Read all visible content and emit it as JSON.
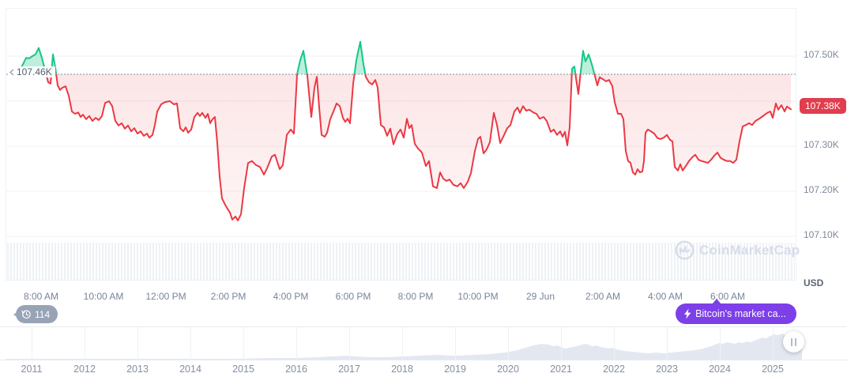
{
  "colors": {
    "green": "#16c784",
    "green_fill": "rgba(22,199,132,0.28)",
    "red": "#ea3943",
    "red_fill_top": "rgba(234,57,67,0.13)",
    "red_fill_bottom": "rgba(234,57,67,0.02)",
    "badge_red": "#e03e4e",
    "purple": "#7d3fe8",
    "gray_badge": "#99a3b6",
    "grid": "#eff2f5",
    "axis_text": "#7f889b",
    "watermark": "#d7dcea",
    "mini_fill": "#e3e8f0"
  },
  "y_axis": {
    "unit_label": "USD",
    "labels": [
      {
        "label": "107.50K",
        "value": 107.5
      },
      {
        "label": "107.30K",
        "value": 107.3
      },
      {
        "label": "107.20K",
        "value": 107.2
      },
      {
        "label": "107.10K",
        "value": 107.1
      }
    ],
    "current_price_label": "107.38K"
  },
  "baseline": {
    "label": "107.46K",
    "value": 107.46
  },
  "history_badge": {
    "count": "114"
  },
  "marketcap_tooltip": {
    "label": "Bitcoin's market ca..."
  },
  "watermark": {
    "label": "CoinMarketCap"
  },
  "chart_data": [
    {
      "type": "line",
      "title": "Bitcoin price intraday (28-29 Jun), USD",
      "unit": "USD",
      "grid": true,
      "legend": "none",
      "baseline_price": 107.46,
      "current_price": 107.38,
      "ylim": [
        107.06,
        107.6
      ],
      "y_grid_values": [
        107.5,
        107.4,
        107.3,
        107.2,
        107.1
      ],
      "x_tick_labels": [
        "8:00 AM",
        "10:00 AM",
        "12:00 PM",
        "2:00 PM",
        "4:00 PM",
        "6:00 PM",
        "8:00 PM",
        "10:00 PM",
        "29 Jun",
        "2:00 AM",
        "4:00 AM",
        "6:00 AM"
      ],
      "points": [
        [
          25,
          107.472
        ],
        [
          28,
          107.482
        ],
        [
          32,
          107.496
        ],
        [
          36,
          107.495
        ],
        [
          40,
          107.5
        ],
        [
          44,
          107.504
        ],
        [
          48,
          107.518
        ],
        [
          52,
          107.496
        ],
        [
          56,
          107.47
        ],
        [
          60,
          107.442
        ],
        [
          63,
          107.439
        ],
        [
          66,
          107.504
        ],
        [
          69,
          107.474
        ],
        [
          72,
          107.435
        ],
        [
          75,
          107.425
        ],
        [
          78,
          107.43
        ],
        [
          82,
          107.433
        ],
        [
          86,
          107.412
        ],
        [
          90,
          107.377
        ],
        [
          94,
          107.372
        ],
        [
          98,
          107.375
        ],
        [
          101,
          107.365
        ],
        [
          104,
          107.37
        ],
        [
          108,
          107.36
        ],
        [
          112,
          107.367
        ],
        [
          116,
          107.356
        ],
        [
          120,
          107.363
        ],
        [
          124,
          107.358
        ],
        [
          128,
          107.367
        ],
        [
          132,
          107.396
        ],
        [
          137,
          107.4
        ],
        [
          141,
          107.389
        ],
        [
          145,
          107.356
        ],
        [
          149,
          107.346
        ],
        [
          153,
          107.351
        ],
        [
          157,
          107.339
        ],
        [
          161,
          107.346
        ],
        [
          165,
          107.333
        ],
        [
          169,
          107.34
        ],
        [
          173,
          107.328
        ],
        [
          177,
          107.333
        ],
        [
          181,
          107.323
        ],
        [
          185,
          107.328
        ],
        [
          188,
          107.319
        ],
        [
          192,
          107.325
        ],
        [
          195,
          107.347
        ],
        [
          198,
          107.377
        ],
        [
          203,
          107.393
        ],
        [
          208,
          107.398
        ],
        [
          214,
          107.4
        ],
        [
          219,
          107.393
        ],
        [
          223,
          107.395
        ],
        [
          227,
          107.34
        ],
        [
          231,
          107.333
        ],
        [
          234,
          107.342
        ],
        [
          237,
          107.33
        ],
        [
          241,
          107.337
        ],
        [
          245,
          107.365
        ],
        [
          249,
          107.374
        ],
        [
          252,
          107.367
        ],
        [
          255,
          107.374
        ],
        [
          259,
          107.363
        ],
        [
          262,
          107.372
        ],
        [
          265,
          107.351
        ],
        [
          268,
          107.36
        ],
        [
          271,
          107.365
        ],
        [
          274,
          107.307
        ],
        [
          277,
          107.232
        ],
        [
          280,
          107.184
        ],
        [
          284,
          107.17
        ],
        [
          287,
          107.161
        ],
        [
          290,
          107.153
        ],
        [
          293,
          107.137
        ],
        [
          297,
          107.144
        ],
        [
          300,
          107.135
        ],
        [
          304,
          107.149
        ],
        [
          308,
          107.207
        ],
        [
          313,
          107.263
        ],
        [
          318,
          107.267
        ],
        [
          323,
          107.258
        ],
        [
          328,
          107.254
        ],
        [
          333,
          107.237
        ],
        [
          337,
          107.251
        ],
        [
          343,
          107.277
        ],
        [
          347,
          107.281
        ],
        [
          353,
          107.249
        ],
        [
          357,
          107.258
        ],
        [
          362,
          107.325
        ],
        [
          367,
          107.337
        ],
        [
          371,
          107.328
        ],
        [
          375,
          107.46
        ],
        [
          379,
          107.491
        ],
        [
          383,
          107.512
        ],
        [
          388,
          107.456
        ],
        [
          393,
          107.365
        ],
        [
          397,
          107.43
        ],
        [
          400,
          107.454
        ],
        [
          403,
          107.386
        ],
        [
          406,
          107.325
        ],
        [
          410,
          107.321
        ],
        [
          413,
          107.33
        ],
        [
          417,
          107.36
        ],
        [
          421,
          107.377
        ],
        [
          425,
          107.395
        ],
        [
          429,
          107.389
        ],
        [
          433,
          107.363
        ],
        [
          436,
          107.354
        ],
        [
          439,
          107.361
        ],
        [
          442,
          107.351
        ],
        [
          446,
          107.439
        ],
        [
          450,
          107.491
        ],
        [
          455,
          107.532
        ],
        [
          459,
          107.482
        ],
        [
          462,
          107.454
        ],
        [
          466,
          107.442
        ],
        [
          470,
          107.437
        ],
        [
          474,
          107.447
        ],
        [
          477,
          107.43
        ],
        [
          481,
          107.347
        ],
        [
          485,
          107.342
        ],
        [
          489,
          107.323
        ],
        [
          493,
          107.339
        ],
        [
          497,
          107.304
        ],
        [
          502,
          107.328
        ],
        [
          506,
          107.337
        ],
        [
          510,
          107.319
        ],
        [
          514,
          107.361
        ],
        [
          517,
          107.34
        ],
        [
          520,
          107.347
        ],
        [
          524,
          107.305
        ],
        [
          528,
          107.295
        ],
        [
          533,
          107.286
        ],
        [
          538,
          107.256
        ],
        [
          542,
          107.267
        ],
        [
          547,
          107.211
        ],
        [
          552,
          107.207
        ],
        [
          556,
          107.242
        ],
        [
          560,
          107.228
        ],
        [
          564,
          107.223
        ],
        [
          568,
          107.226
        ],
        [
          573,
          107.214
        ],
        [
          578,
          107.211
        ],
        [
          582,
          107.218
        ],
        [
          586,
          107.207
        ],
        [
          591,
          107.221
        ],
        [
          595,
          107.24
        ],
        [
          600,
          107.289
        ],
        [
          604,
          107.316
        ],
        [
          607,
          107.321
        ],
        [
          611,
          107.284
        ],
        [
          615,
          107.293
        ],
        [
          619,
          107.309
        ],
        [
          624,
          107.374
        ],
        [
          628,
          107.347
        ],
        [
          632,
          107.307
        ],
        [
          637,
          107.325
        ],
        [
          641,
          107.34
        ],
        [
          645,
          107.347
        ],
        [
          650,
          107.377
        ],
        [
          654,
          107.386
        ],
        [
          657,
          107.374
        ],
        [
          661,
          107.389
        ],
        [
          665,
          107.379
        ],
        [
          669,
          107.381
        ],
        [
          674,
          107.375
        ],
        [
          678,
          107.372
        ],
        [
          682,
          107.361
        ],
        [
          687,
          107.365
        ],
        [
          691,
          107.356
        ],
        [
          696,
          107.332
        ],
        [
          700,
          107.337
        ],
        [
          704,
          107.325
        ],
        [
          708,
          107.333
        ],
        [
          711,
          107.321
        ],
        [
          714,
          107.332
        ],
        [
          717,
          107.302
        ],
        [
          720,
          107.342
        ],
        [
          723,
          107.472
        ],
        [
          726,
          107.477
        ],
        [
          728,
          107.451
        ],
        [
          731,
          107.416
        ],
        [
          734,
          107.465
        ],
        [
          737,
          107.512
        ],
        [
          740,
          107.488
        ],
        [
          744,
          107.504
        ],
        [
          748,
          107.482
        ],
        [
          752,
          107.456
        ],
        [
          755,
          107.435
        ],
        [
          758,
          107.453
        ],
        [
          762,
          107.449
        ],
        [
          766,
          107.444
        ],
        [
          770,
          107.447
        ],
        [
          774,
          107.433
        ],
        [
          777,
          107.398
        ],
        [
          781,
          107.372
        ],
        [
          785,
          107.372
        ],
        [
          788,
          107.36
        ],
        [
          791,
          107.289
        ],
        [
          794,
          107.267
        ],
        [
          797,
          107.263
        ],
        [
          800,
          107.242
        ],
        [
          803,
          107.237
        ],
        [
          806,
          107.249
        ],
        [
          809,
          107.242
        ],
        [
          812,
          107.244
        ],
        [
          814,
          107.267
        ],
        [
          816,
          107.33
        ],
        [
          819,
          107.337
        ],
        [
          823,
          107.333
        ],
        [
          827,
          107.328
        ],
        [
          831,
          107.318
        ],
        [
          835,
          107.316
        ],
        [
          839,
          107.319
        ],
        [
          843,
          107.325
        ],
        [
          847,
          107.314
        ],
        [
          850,
          107.311
        ],
        [
          853,
          107.254
        ],
        [
          857,
          107.246
        ],
        [
          860,
          107.26
        ],
        [
          863,
          107.246
        ],
        [
          867,
          107.256
        ],
        [
          871,
          107.267
        ],
        [
          875,
          107.275
        ],
        [
          879,
          107.281
        ],
        [
          883,
          107.27
        ],
        [
          887,
          107.267
        ],
        [
          891,
          107.265
        ],
        [
          895,
          107.263
        ],
        [
          899,
          107.27
        ],
        [
          903,
          107.279
        ],
        [
          907,
          107.286
        ],
        [
          911,
          107.274
        ],
        [
          915,
          107.27
        ],
        [
          919,
          107.267
        ],
        [
          923,
          107.267
        ],
        [
          927,
          107.263
        ],
        [
          931,
          107.27
        ],
        [
          935,
          107.311
        ],
        [
          939,
          107.344
        ],
        [
          943,
          107.347
        ],
        [
          947,
          107.351
        ],
        [
          951,
          107.347
        ],
        [
          955,
          107.356
        ],
        [
          959,
          107.36
        ],
        [
          963,
          107.365
        ],
        [
          967,
          107.37
        ],
        [
          971,
          107.375
        ],
        [
          974,
          107.377
        ],
        [
          977,
          107.363
        ],
        [
          981,
          107.395
        ],
        [
          984,
          107.381
        ],
        [
          988,
          107.391
        ],
        [
          992,
          107.377
        ],
        [
          995,
          107.388
        ],
        [
          1000,
          107.382
        ]
      ]
    },
    {
      "type": "area",
      "title": "All-time range selector",
      "x_tick_labels": [
        "2011",
        "2012",
        "2013",
        "2014",
        "2015",
        "2016",
        "2017",
        "2018",
        "2019",
        "2020",
        "2021",
        "2022",
        "2023",
        "2024",
        "2025"
      ],
      "points": [
        [
          7,
          1
        ],
        [
          60,
          1
        ],
        [
          120,
          1
        ],
        [
          180,
          1
        ],
        [
          240,
          1
        ],
        [
          300,
          1
        ],
        [
          340,
          2
        ],
        [
          375,
          2
        ],
        [
          400,
          3
        ],
        [
          420,
          4
        ],
        [
          440,
          5
        ],
        [
          450,
          4
        ],
        [
          470,
          3
        ],
        [
          490,
          3
        ],
        [
          510,
          4
        ],
        [
          530,
          5
        ],
        [
          555,
          6
        ],
        [
          575,
          5
        ],
        [
          600,
          6
        ],
        [
          620,
          7
        ],
        [
          640,
          9
        ],
        [
          655,
          12
        ],
        [
          665,
          15
        ],
        [
          675,
          18
        ],
        [
          685,
          20
        ],
        [
          695,
          19
        ],
        [
          700,
          17
        ],
        [
          705,
          18
        ],
        [
          710,
          16
        ],
        [
          715,
          14
        ],
        [
          720,
          15
        ],
        [
          730,
          17
        ],
        [
          740,
          20
        ],
        [
          745,
          19
        ],
        [
          750,
          17
        ],
        [
          755,
          18
        ],
        [
          760,
          16
        ],
        [
          765,
          15
        ],
        [
          770,
          14
        ],
        [
          775,
          15
        ],
        [
          780,
          13
        ],
        [
          790,
          11
        ],
        [
          800,
          10
        ],
        [
          810,
          9
        ],
        [
          820,
          8
        ],
        [
          830,
          9
        ],
        [
          840,
          8
        ],
        [
          850,
          9
        ],
        [
          860,
          10
        ],
        [
          870,
          11
        ],
        [
          880,
          12
        ],
        [
          890,
          14
        ],
        [
          900,
          17
        ],
        [
          905,
          19
        ],
        [
          910,
          21
        ],
        [
          915,
          20
        ],
        [
          920,
          22
        ],
        [
          925,
          21
        ],
        [
          930,
          20
        ],
        [
          935,
          22
        ],
        [
          940,
          21
        ],
        [
          945,
          23
        ],
        [
          950,
          22
        ],
        [
          955,
          24
        ],
        [
          960,
          26
        ],
        [
          965,
          28
        ],
        [
          970,
          27
        ],
        [
          975,
          30
        ],
        [
          980,
          32
        ],
        [
          985,
          31
        ],
        [
          990,
          33
        ],
        [
          995,
          30
        ],
        [
          1000,
          29
        ],
        [
          1005,
          28
        ],
        [
          1010,
          26
        ],
        [
          1015,
          25
        ]
      ]
    }
  ]
}
